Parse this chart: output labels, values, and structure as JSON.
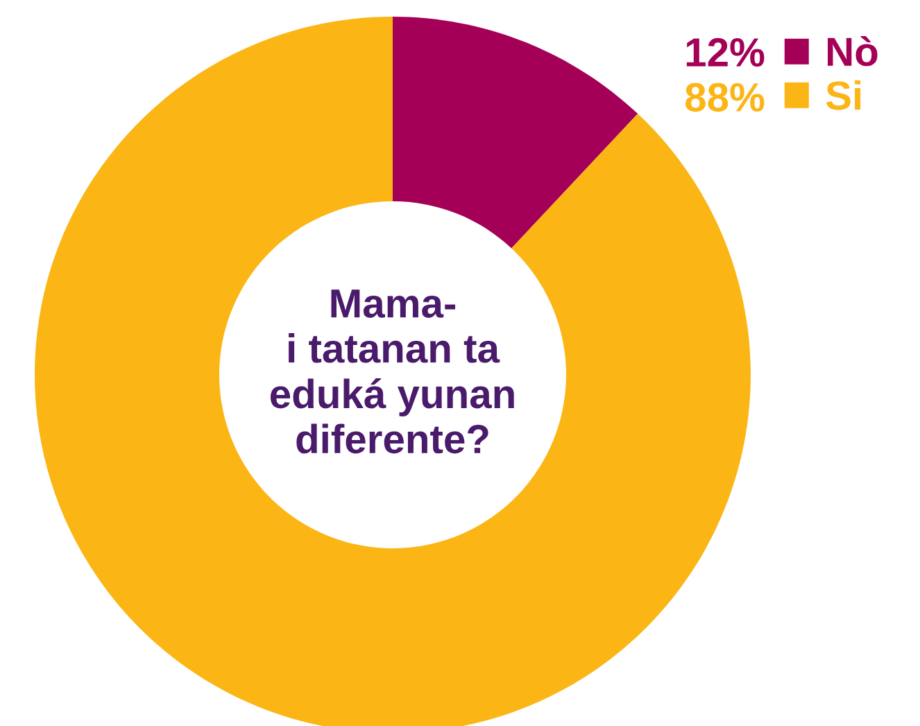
{
  "chart_data": {
    "type": "donut",
    "title": "Mama-\ni tatanan ta\neduká yunan\ndiferente?",
    "categories": [
      "Nò",
      "Si"
    ],
    "values": [
      12,
      88
    ],
    "colors": [
      "#a50057",
      "#fbb515"
    ],
    "value_labels": [
      "12%",
      "88%"
    ],
    "legend": "top right"
  }
}
